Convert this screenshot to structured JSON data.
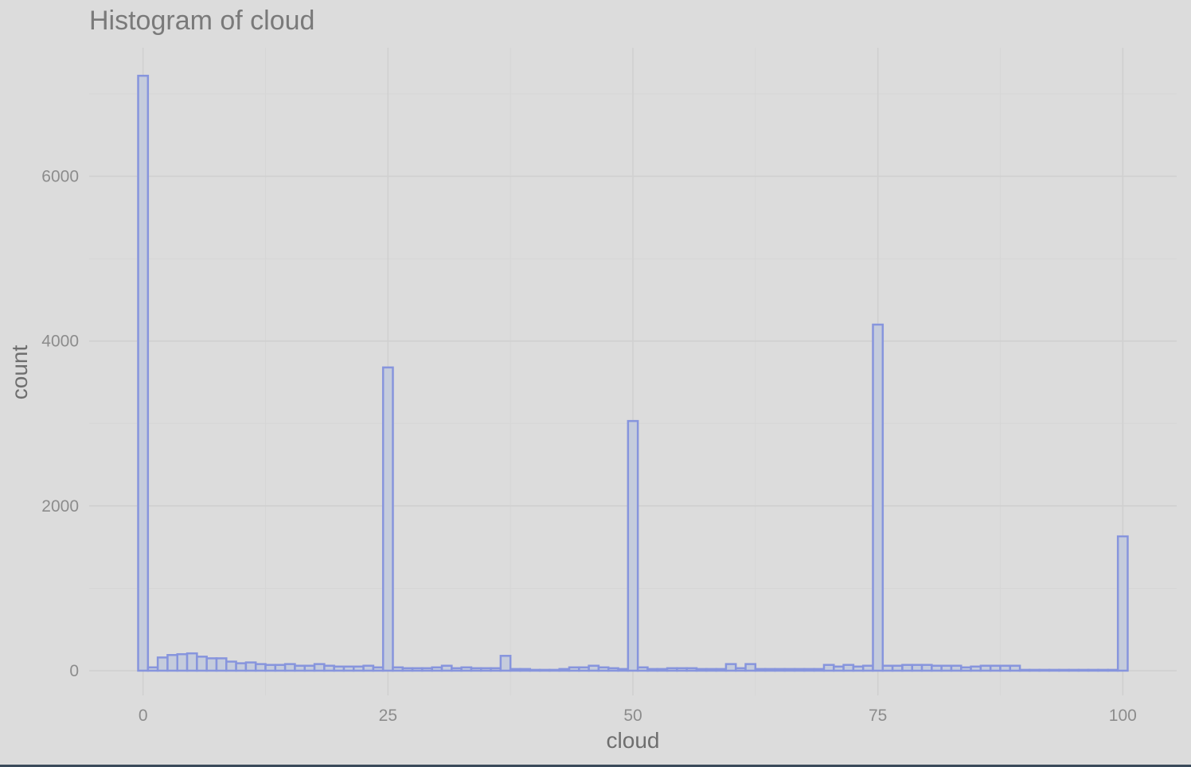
{
  "chart_data": {
    "type": "bar",
    "title": "Histogram of cloud",
    "xlabel": "cloud",
    "ylabel": "count",
    "xlim": [
      -5.5,
      105.5
    ],
    "ylim": [
      -300,
      7560
    ],
    "x_ticks": [
      0,
      25,
      50,
      75,
      100
    ],
    "x_tick_labels": [
      "0",
      "25",
      "50",
      "75",
      "100"
    ],
    "y_ticks": [
      0,
      2000,
      4000,
      6000
    ],
    "y_tick_labels": [
      "0",
      "2000",
      "4000",
      "6000"
    ],
    "grid": true,
    "legend": "none",
    "bar_width": 1,
    "x": [
      0,
      1,
      2,
      3,
      4,
      5,
      6,
      7,
      8,
      9,
      10,
      11,
      12,
      13,
      14,
      15,
      16,
      17,
      18,
      19,
      20,
      21,
      22,
      23,
      24,
      25,
      26,
      27,
      28,
      29,
      30,
      31,
      32,
      33,
      34,
      35,
      36,
      37,
      38,
      39,
      40,
      41,
      42,
      43,
      44,
      45,
      46,
      47,
      48,
      49,
      50,
      51,
      52,
      53,
      54,
      55,
      56,
      57,
      58,
      59,
      60,
      61,
      62,
      63,
      64,
      65,
      66,
      67,
      68,
      69,
      70,
      71,
      72,
      73,
      74,
      75,
      76,
      77,
      78,
      79,
      80,
      81,
      82,
      83,
      84,
      85,
      86,
      87,
      88,
      89,
      90,
      91,
      92,
      93,
      94,
      95,
      96,
      97,
      98,
      99,
      100
    ],
    "values": [
      7220,
      40,
      160,
      190,
      200,
      210,
      170,
      150,
      150,
      110,
      90,
      100,
      80,
      70,
      70,
      80,
      60,
      60,
      80,
      60,
      50,
      50,
      50,
      60,
      40,
      3680,
      40,
      30,
      30,
      30,
      40,
      60,
      30,
      40,
      30,
      30,
      30,
      180,
      20,
      20,
      10,
      10,
      10,
      20,
      40,
      40,
      60,
      40,
      30,
      20,
      3030,
      40,
      20,
      20,
      30,
      30,
      30,
      20,
      20,
      20,
      80,
      30,
      80,
      20,
      20,
      20,
      20,
      20,
      20,
      20,
      70,
      50,
      70,
      50,
      60,
      4200,
      60,
      60,
      70,
      70,
      70,
      60,
      60,
      60,
      40,
      50,
      60,
      60,
      60,
      60,
      10,
      10,
      10,
      10,
      10,
      10,
      10,
      10,
      10,
      10,
      1630
    ],
    "colors": {
      "background": "#dcdcdc",
      "bar_fill": "#c5ccdc",
      "bar_stroke": "#8795dd"
    }
  }
}
